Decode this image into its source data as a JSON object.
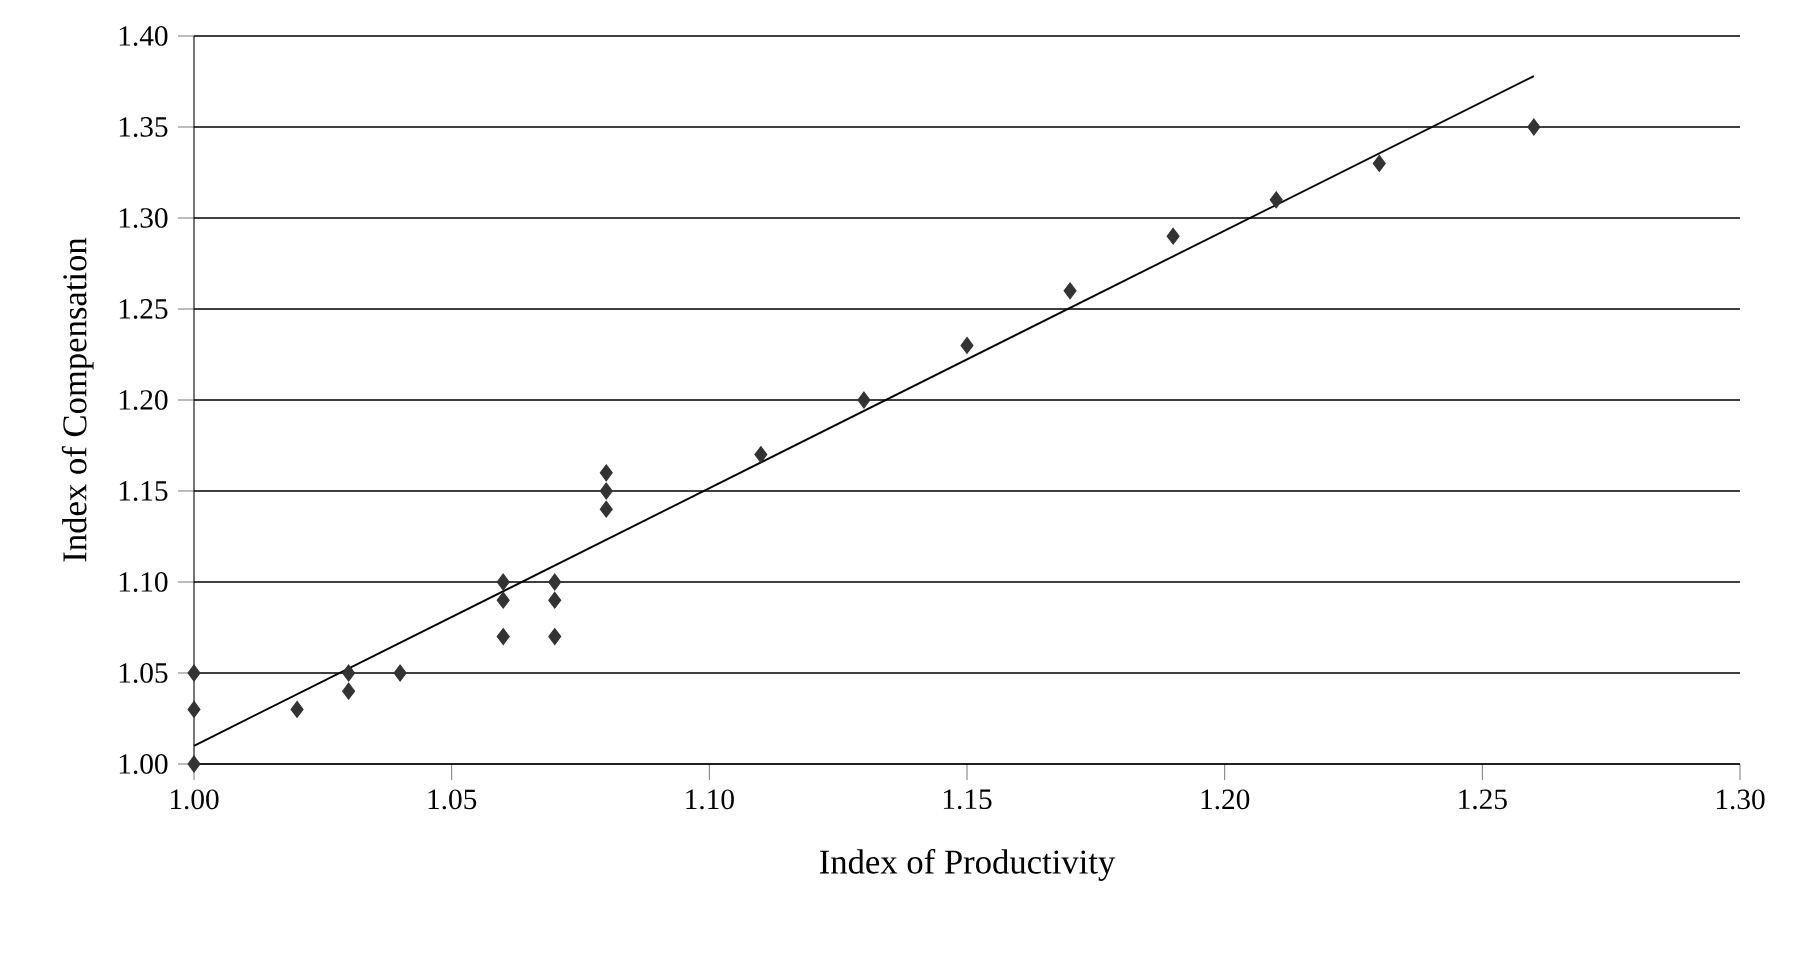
{
  "chart_data": {
    "type": "scatter",
    "xlabel": "Index of Productivity",
    "ylabel": "Index of  Compensation",
    "xlim": [
      1.0,
      1.3
    ],
    "xticks": [
      {
        "value": 1.0,
        "label": "1.00"
      },
      {
        "value": 1.05,
        "label": "1.05"
      },
      {
        "value": 1.1,
        "label": "1.10"
      },
      {
        "value": 1.15,
        "label": "1.15"
      },
      {
        "value": 1.2,
        "label": "1.20"
      },
      {
        "value": 1.25,
        "label": "1.25"
      },
      {
        "value": 1.3,
        "label": "1.30"
      }
    ],
    "ylim": [
      1.0,
      1.4
    ],
    "yticks": [
      {
        "value": 1.0,
        "label": "1.00"
      },
      {
        "value": 1.05,
        "label": "1.05"
      },
      {
        "value": 1.1,
        "label": "1.10"
      },
      {
        "value": 1.15,
        "label": "1.15"
      },
      {
        "value": 1.2,
        "label": "1.20"
      },
      {
        "value": 1.25,
        "label": "1.25"
      },
      {
        "value": 1.3,
        "label": "1.30"
      },
      {
        "value": 1.35,
        "label": "1.35"
      },
      {
        "value": 1.4,
        "label": "1.40"
      }
    ],
    "grid": "y",
    "marker": "diamond",
    "series": [
      {
        "color": "#333333",
        "x": [
          1.0,
          1.0,
          1.0,
          1.02,
          1.03,
          1.03,
          1.04,
          1.06,
          1.06,
          1.06,
          1.07,
          1.07,
          1.07,
          1.08,
          1.08,
          1.08,
          1.11,
          1.13,
          1.15,
          1.17,
          1.19,
          1.21,
          1.23,
          1.26
        ],
        "values": [
          1.05,
          1.03,
          1.0,
          1.03,
          1.05,
          1.04,
          1.05,
          1.1,
          1.09,
          1.07,
          1.1,
          1.09,
          1.07,
          1.16,
          1.15,
          1.14,
          1.17,
          1.2,
          1.23,
          1.26,
          1.29,
          1.31,
          1.33,
          1.35
        ]
      },
      {
        "type": "line",
        "color": "#000000",
        "marker": "none",
        "x": [
          1.0,
          1.26
        ],
        "values": [
          1.01,
          1.378
        ]
      }
    ]
  }
}
